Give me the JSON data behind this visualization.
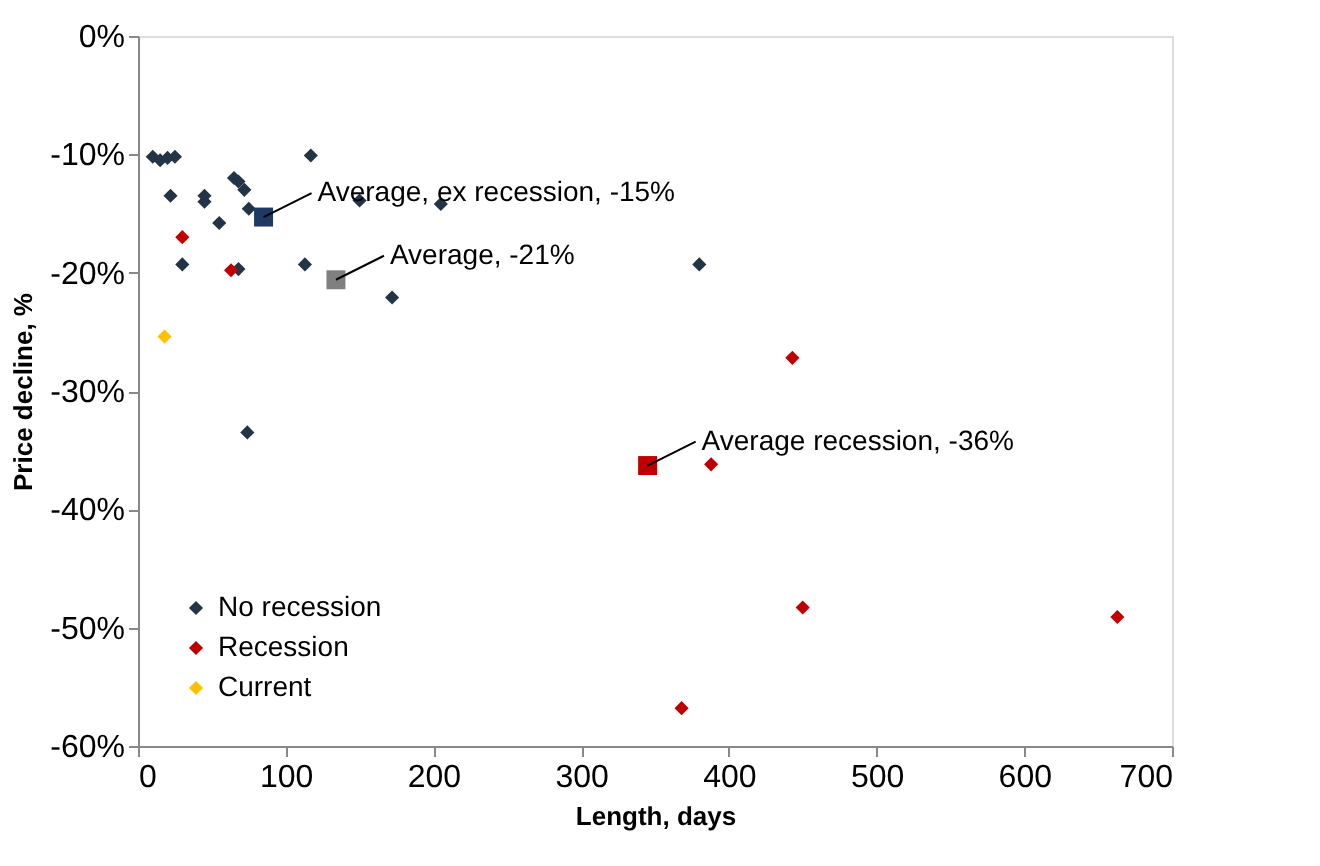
{
  "chart_data": {
    "type": "scatter",
    "xlabel": "Length, days",
    "ylabel": "Price decline, %",
    "xlim": [
      0,
      700
    ],
    "xticks": [
      0,
      100,
      200,
      300,
      400,
      500,
      600,
      700
    ],
    "ylim": [
      -60,
      0
    ],
    "yticks": [
      {
        "value": -60,
        "label": "-60%"
      },
      {
        "value": -50,
        "label": "-50%"
      },
      {
        "value": -40,
        "label": "-40%"
      },
      {
        "value": -30,
        "label": "-30%"
      },
      {
        "value": -20,
        "label": "-20%"
      },
      {
        "value": -10,
        "label": "-10%"
      },
      {
        "value": 0,
        "label": "0%"
      }
    ],
    "grid": false,
    "legend": "bottom left",
    "marker": "diamond",
    "series": [
      {
        "name": "No recession",
        "color": "#243447",
        "x": [
          10,
          15,
          20,
          25,
          22,
          45,
          45,
          30,
          55,
          65,
          68,
          72,
          75,
          68,
          74,
          113,
          117,
          150,
          172,
          205,
          380
        ],
        "values": [
          -10.2,
          -10.5,
          -10.3,
          -10.2,
          -13.5,
          -13.5,
          -14,
          -19.3,
          -15.8,
          -12,
          -12.3,
          -13,
          -14.6,
          -19.7,
          -33.5,
          -19.3,
          -10.1,
          -13.9,
          -22.1,
          -14.2,
          -19.3
        ]
      },
      {
        "name": "Recession",
        "color": "#c00000",
        "x": [
          30,
          63,
          368,
          388,
          443,
          450,
          663
        ],
        "values": [
          -17,
          -19.8,
          -56.8,
          -36.2,
          -27.2,
          -48.3,
          -49.1
        ]
      },
      {
        "name": "Current",
        "color": "#ffc000",
        "x": [
          18
        ],
        "values": [
          -25.4
        ]
      },
      {
        "color": "#1f3864",
        "marker": "square",
        "x": [
          85
        ],
        "values": [
          -15.3
        ]
      },
      {
        "color": "#808080",
        "marker": "square",
        "x": [
          134
        ],
        "values": [
          -20.6
        ]
      },
      {
        "color": "#c00000",
        "marker": "square",
        "x": [
          345
        ],
        "values": [
          -36.3
        ]
      }
    ],
    "annotations": [
      {
        "text": "Average, ex recession, -15%",
        "x": 85,
        "y": -15.3
      },
      {
        "text": "Average, -21%",
        "x": 134,
        "y": -20.6
      },
      {
        "text": "Average recession, -36%",
        "x": 345,
        "y": -36.3
      }
    ]
  }
}
